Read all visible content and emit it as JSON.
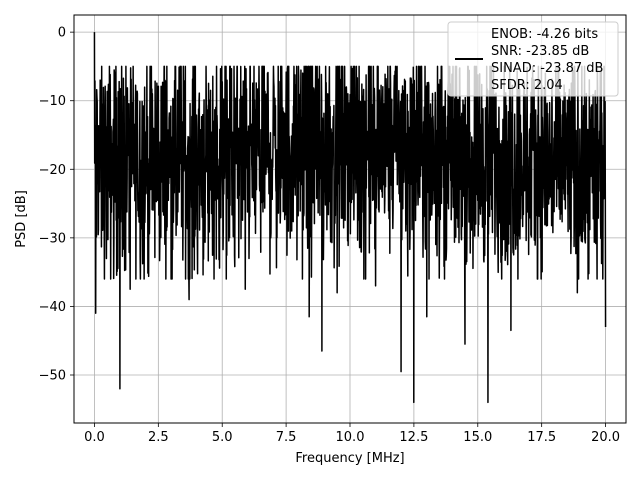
{
  "chart_data": {
    "type": "line",
    "title": "",
    "xlabel": "Frequency [MHz]",
    "ylabel": "PSD [dB]",
    "xlim": [
      -0.8,
      20.8
    ],
    "ylim": [
      -57,
      2.5
    ],
    "xticks": [
      0.0,
      2.5,
      5.0,
      7.5,
      10.0,
      12.5,
      15.0,
      17.5,
      20.0
    ],
    "xtick_labels": [
      "0.0",
      "2.5",
      "5.0",
      "7.5",
      "10.0",
      "12.5",
      "15.0",
      "17.5",
      "20.0"
    ],
    "yticks": [
      0,
      -10,
      -20,
      -30,
      -40,
      -50
    ],
    "ytick_labels": [
      "0",
      "−10",
      "−20",
      "−30",
      "−40",
      "−50"
    ],
    "grid": true,
    "legend_position": "top-right",
    "legend_lines": [
      "ENOB: -4.26 bits",
      "SNR: -23.85 dB",
      "SINAD: -23.87 dB",
      "SFDR: 2.04"
    ],
    "series": [
      {
        "color": "#000000",
        "x_start": 0.0,
        "x_end": 20.0,
        "num_points": 2048,
        "approx_floor_db": -18,
        "approx_spread_db": 8,
        "spikes": [
          {
            "x": 0.0,
            "y": 0.0
          },
          {
            "x": 0.05,
            "y": -41
          },
          {
            "x": 1.0,
            "y": -52
          },
          {
            "x": 1.4,
            "y": -37.5
          },
          {
            "x": 3.7,
            "y": -39
          },
          {
            "x": 5.9,
            "y": -37.5
          },
          {
            "x": 8.4,
            "y": -41.5
          },
          {
            "x": 8.9,
            "y": -46.5
          },
          {
            "x": 9.5,
            "y": -38
          },
          {
            "x": 11.0,
            "y": -37
          },
          {
            "x": 12.0,
            "y": -49.5
          },
          {
            "x": 12.5,
            "y": -54
          },
          {
            "x": 13.0,
            "y": -41.5
          },
          {
            "x": 14.5,
            "y": -45.5
          },
          {
            "x": 15.4,
            "y": -54
          },
          {
            "x": 16.3,
            "y": -43.5
          },
          {
            "x": 18.9,
            "y": -38
          },
          {
            "x": 20.0,
            "y": -43
          }
        ]
      }
    ]
  }
}
